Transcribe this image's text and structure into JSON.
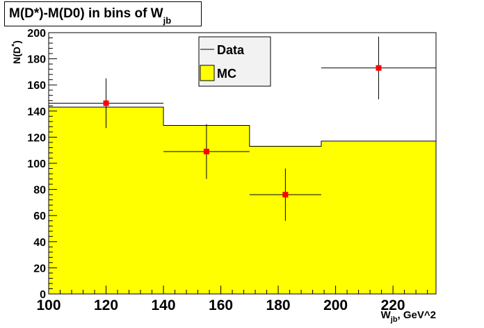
{
  "title": {
    "main": "M(D*)-M(D0) in bins of W",
    "sub": "jb"
  },
  "colors": {
    "mc_fill": "#ffff00",
    "data_marker": "#ff0000",
    "axis": "#000000"
  },
  "legend": {
    "entries": [
      {
        "label": "Data",
        "kind": "line"
      },
      {
        "label": "MC",
        "kind": "fill"
      }
    ]
  },
  "chart_data": {
    "type": "bar",
    "title": "M(D*)-M(D0) in bins of W_jb",
    "xlabel": "W_jb, GeV^2",
    "ylabel": "N(D*)",
    "xlim": [
      100,
      235
    ],
    "ylim": [
      0,
      200
    ],
    "x_major_ticks": [
      100,
      120,
      140,
      160,
      180,
      200,
      220
    ],
    "y_major_ticks": [
      0,
      20,
      40,
      60,
      80,
      100,
      120,
      140,
      160,
      180,
      200
    ],
    "x_tick_labels": [
      "100",
      "120",
      "140",
      "160",
      "180",
      "200",
      "220"
    ],
    "y_tick_labels": [
      "0",
      "20",
      "40",
      "60",
      "80",
      "100",
      "120",
      "140",
      "160",
      "180",
      "200"
    ],
    "mc_histogram": {
      "name": "MC",
      "bin_edges": [
        100,
        140,
        170,
        195,
        235
      ],
      "values": [
        143,
        129,
        113,
        117
      ]
    },
    "data_points": {
      "name": "Data",
      "x": [
        120,
        155,
        182.5,
        215
      ],
      "y": [
        146,
        109,
        76,
        173
      ],
      "x_err": [
        20,
        15,
        12.5,
        20
      ],
      "y_err": [
        19,
        21,
        20,
        24
      ]
    },
    "legend_position": "top-center"
  },
  "axis_text": {
    "y_main": "N(D",
    "y_sup": "*",
    "y_close": ")",
    "x_main": "W",
    "x_sub": "jb",
    "x_rest": ", GeV^2"
  }
}
